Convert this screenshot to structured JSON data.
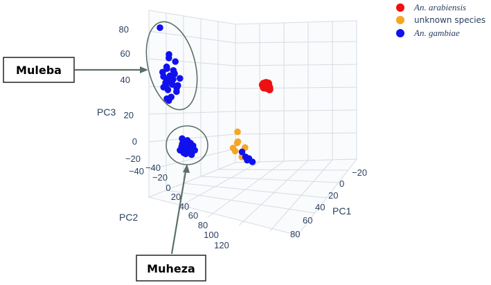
{
  "chart_data": {
    "type": "scatter",
    "projection": "3d",
    "axes": {
      "x": {
        "label": "PC1",
        "ticks": [
          -20,
          0,
          20,
          40,
          60,
          80
        ],
        "range": [
          -20,
          90
        ]
      },
      "y": {
        "label": "PC2",
        "ticks": [
          -40,
          -20,
          0,
          20,
          40,
          60,
          80,
          100,
          120
        ],
        "range": [
          -40,
          125
        ]
      },
      "z": {
        "label": "PC3",
        "ticks": [
          -40,
          -20,
          0,
          20,
          40,
          60,
          80
        ],
        "range": [
          -45,
          85
        ]
      }
    },
    "grid": true,
    "legend_position": "top-right",
    "series": [
      {
        "name": "An. arabiensis",
        "color": "#ee1111",
        "label_style": "italic",
        "points": [
          [
            45,
            -10,
            58
          ],
          [
            46,
            -9,
            60
          ],
          [
            47,
            -11,
            59
          ],
          [
            45,
            -12,
            57
          ],
          [
            48,
            -10,
            58
          ],
          [
            46,
            -11,
            61
          ],
          [
            44,
            -10,
            60
          ],
          [
            47,
            -9,
            57
          ],
          [
            45,
            -11,
            59
          ],
          [
            46,
            -10,
            58
          ],
          [
            48,
            -12,
            60
          ],
          [
            44,
            -11,
            58
          ],
          [
            47,
            -10,
            61
          ],
          [
            46,
            -12,
            57
          ],
          [
            45,
            -9,
            59
          ],
          [
            47,
            -11,
            60
          ],
          [
            46,
            -10,
            59
          ],
          [
            45,
            -10,
            60
          ],
          [
            44,
            -12,
            59
          ],
          [
            48,
            -11,
            59
          ],
          [
            47,
            -12,
            58
          ],
          [
            46,
            -9,
            58
          ],
          [
            45,
            -12,
            60
          ],
          [
            44,
            -9,
            58
          ]
        ]
      },
      {
        "name": "unknown species",
        "color": "#f5a623",
        "points": [
          [
            -10,
            42,
            6
          ],
          [
            -12,
            44,
            -3
          ],
          [
            -8,
            40,
            -6
          ],
          [
            -5,
            46,
            -8
          ],
          [
            -11,
            38,
            -12
          ],
          [
            -6,
            36,
            -16
          ],
          [
            -3,
            45,
            -18
          ],
          [
            -2,
            40,
            -20
          ]
        ]
      },
      {
        "name": "An. gambiae",
        "color": "#1111ee",
        "label_style": "italic",
        "points": [
          [
            10,
            -8,
            80
          ],
          [
            12,
            -6,
            66
          ],
          [
            11,
            -4,
            62
          ],
          [
            13,
            -2,
            58
          ],
          [
            10,
            -4,
            52
          ],
          [
            12,
            -8,
            50
          ],
          [
            14,
            -6,
            48
          ],
          [
            11,
            -10,
            46
          ],
          [
            13,
            -3,
            45
          ],
          [
            15,
            -7,
            44
          ],
          [
            12,
            -5,
            42
          ],
          [
            10,
            -7,
            41
          ],
          [
            14,
            -9,
            40
          ],
          [
            16,
            -4,
            39
          ],
          [
            12,
            -2,
            38
          ],
          [
            11,
            -6,
            37
          ],
          [
            13,
            -8,
            36
          ],
          [
            15,
            -10,
            35
          ],
          [
            10,
            -5,
            34
          ],
          [
            12,
            -3,
            33
          ],
          [
            14,
            -7,
            32
          ],
          [
            16,
            -6,
            31
          ],
          [
            13,
            -11,
            30
          ],
          [
            11,
            -9,
            29
          ],
          [
            15,
            -5,
            28
          ],
          [
            12,
            -7,
            26
          ],
          [
            14,
            -3,
            24
          ],
          [
            13,
            -6,
            18
          ],
          [
            12,
            -8,
            16
          ],
          [
            11,
            -4,
            14
          ],
          [
            20,
            30,
            -22
          ],
          [
            22,
            32,
            -24
          ],
          [
            21,
            28,
            -26
          ],
          [
            24,
            30,
            -27
          ],
          [
            19,
            34,
            -28
          ],
          [
            23,
            33,
            -29
          ],
          [
            22,
            27,
            -30
          ],
          [
            25,
            31,
            -30
          ],
          [
            20,
            29,
            -31
          ],
          [
            23,
            35,
            -32
          ],
          [
            21,
            31,
            -33
          ],
          [
            24,
            28,
            -33
          ],
          [
            22,
            33,
            -34
          ],
          [
            19,
            30,
            -35
          ],
          [
            25,
            34,
            -35
          ],
          [
            21,
            27,
            -36
          ],
          [
            23,
            30,
            -37
          ],
          [
            20,
            33,
            -38
          ],
          [
            22,
            29,
            -39
          ],
          [
            24,
            32,
            -40
          ],
          [
            -4,
            48,
            -14
          ],
          [
            -2,
            50,
            -20
          ],
          [
            0,
            47,
            -22
          ],
          [
            -1,
            52,
            -24
          ],
          [
            2,
            49,
            -26
          ]
        ]
      }
    ]
  },
  "legend": {
    "items": [
      {
        "label": "An. arabiensis",
        "color": "#ee1111",
        "italic": true
      },
      {
        "label": "unknown species",
        "color": "#f5a623",
        "italic": false
      },
      {
        "label": "An. gambiae",
        "color": "#1111ee",
        "italic": true
      }
    ]
  },
  "annotations": {
    "muleba": {
      "label": "Muleba"
    },
    "muheza": {
      "label": "Muheza"
    }
  }
}
